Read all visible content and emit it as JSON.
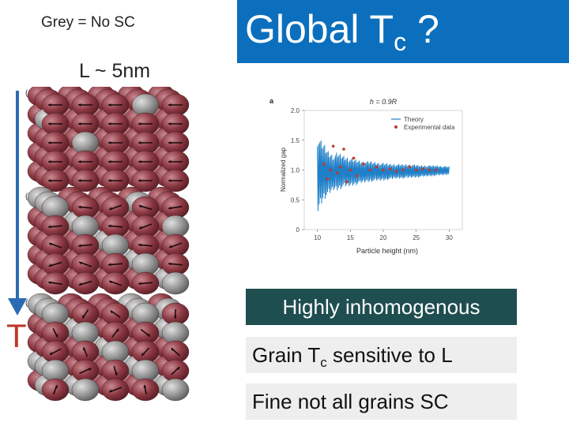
{
  "notes": {
    "grey": "Grey = No SC",
    "size": "L ~ 5nm"
  },
  "title": {
    "main": "Global T",
    "sub": "c",
    "tail": " ?"
  },
  "temperature_axis": {
    "label": "T"
  },
  "lattice_panels": [
    "(a)",
    "(b)",
    "(c)"
  ],
  "boxes": {
    "inhomogenous": "Highly inhomogenous",
    "grain_prefix": "Grain T",
    "grain_sub": "c",
    "grain_suffix": " sensitive to L",
    "fine": "Fine not all grains SC"
  },
  "colors": {
    "title_bg": "#0b6fbd",
    "dark_box": "#1f4e50",
    "sc_sphere": "#8e3a44",
    "nonsc_sphere": "#9a9a9a",
    "theory": "#1f7fc8",
    "experiment": "#c0392b"
  },
  "chart_data": {
    "type": "line",
    "panel_label": "a",
    "title": "h = 0.9R",
    "xlabel": "Particle height (nm)",
    "ylabel": "Normalized gap",
    "xlim": [
      8,
      32
    ],
    "ylim": [
      0,
      2.0
    ],
    "xticks": [
      "10",
      "15",
      "20",
      "25",
      "30"
    ],
    "yticks": [
      "0",
      "0.5",
      "1.0",
      "1.5",
      "2.0"
    ],
    "legend": [
      "Theory",
      "Experimental data"
    ],
    "series": [
      {
        "name": "Theory",
        "x": [
          10,
          10.5,
          11,
          11.5,
          12,
          12.5,
          13,
          14,
          15,
          16,
          17,
          18,
          20,
          22,
          24,
          26,
          28,
          30
        ],
        "upper": [
          1.6,
          1.5,
          1.45,
          1.35,
          1.3,
          1.25,
          1.3,
          1.25,
          1.2,
          1.18,
          1.15,
          1.15,
          1.12,
          1.1,
          1.1,
          1.08,
          1.08,
          1.06
        ],
        "lower": [
          0.25,
          0.4,
          0.5,
          0.55,
          0.6,
          0.65,
          0.65,
          0.7,
          0.72,
          0.75,
          0.78,
          0.8,
          0.82,
          0.85,
          0.86,
          0.88,
          0.9,
          0.92
        ]
      },
      {
        "name": "Experimental data",
        "x": [
          11,
          11.5,
          12,
          12.4,
          13,
          13.5,
          14,
          14.5,
          15,
          15.5,
          16,
          17,
          18,
          19,
          20,
          21,
          22,
          23,
          24,
          25,
          26,
          27,
          28
        ],
        "y": [
          1.1,
          0.85,
          1.0,
          1.4,
          0.95,
          1.05,
          1.35,
          0.8,
          1.0,
          1.2,
          0.9,
          1.1,
          1.0,
          1.05,
          1.0,
          1.02,
          0.98,
          1.0,
          1.05,
          1.0,
          1.02,
          1.0,
          1.0
        ]
      }
    ]
  }
}
